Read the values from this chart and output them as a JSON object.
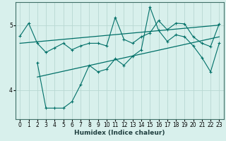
{
  "xlabel": "Humidex (Indice chaleur)",
  "ylabel": "",
  "xlim": [
    -0.5,
    23.5
  ],
  "ylim": [
    3.55,
    5.35
  ],
  "yticks": [
    4,
    5
  ],
  "xticks": [
    0,
    1,
    2,
    3,
    4,
    5,
    6,
    7,
    8,
    9,
    10,
    11,
    12,
    13,
    14,
    15,
    16,
    17,
    18,
    19,
    20,
    21,
    22,
    23
  ],
  "bg_color": "#d8f0ec",
  "grid_color": "#b8d8d2",
  "line_color": "#007068",
  "line1_x": [
    0,
    1,
    2,
    3,
    4,
    5,
    6,
    7,
    8,
    9,
    10,
    11,
    12,
    13,
    14,
    15,
    16,
    17,
    18,
    19,
    20,
    21,
    22,
    23
  ],
  "line1_y": [
    4.83,
    5.03,
    4.72,
    4.58,
    4.65,
    4.72,
    4.62,
    4.68,
    4.72,
    4.72,
    4.68,
    5.12,
    4.78,
    4.72,
    4.82,
    4.88,
    5.07,
    4.93,
    5.03,
    5.02,
    4.82,
    4.72,
    4.67,
    5.02
  ],
  "line2_x": [
    2,
    3,
    4,
    5,
    6,
    7,
    8,
    9,
    10,
    11,
    12,
    13,
    14,
    15,
    16,
    17,
    18,
    19,
    20,
    21,
    22,
    23
  ],
  "line2_y": [
    4.42,
    3.72,
    3.72,
    3.72,
    3.82,
    4.08,
    4.38,
    4.28,
    4.32,
    4.48,
    4.38,
    4.52,
    4.62,
    5.28,
    4.92,
    4.75,
    4.85,
    4.82,
    4.68,
    4.5,
    4.28,
    4.72
  ],
  "line3_x": [
    0,
    23
  ],
  "line3_y": [
    4.72,
    5.0
  ],
  "line4_x": [
    2,
    23
  ],
  "line4_y": [
    4.2,
    4.82
  ]
}
